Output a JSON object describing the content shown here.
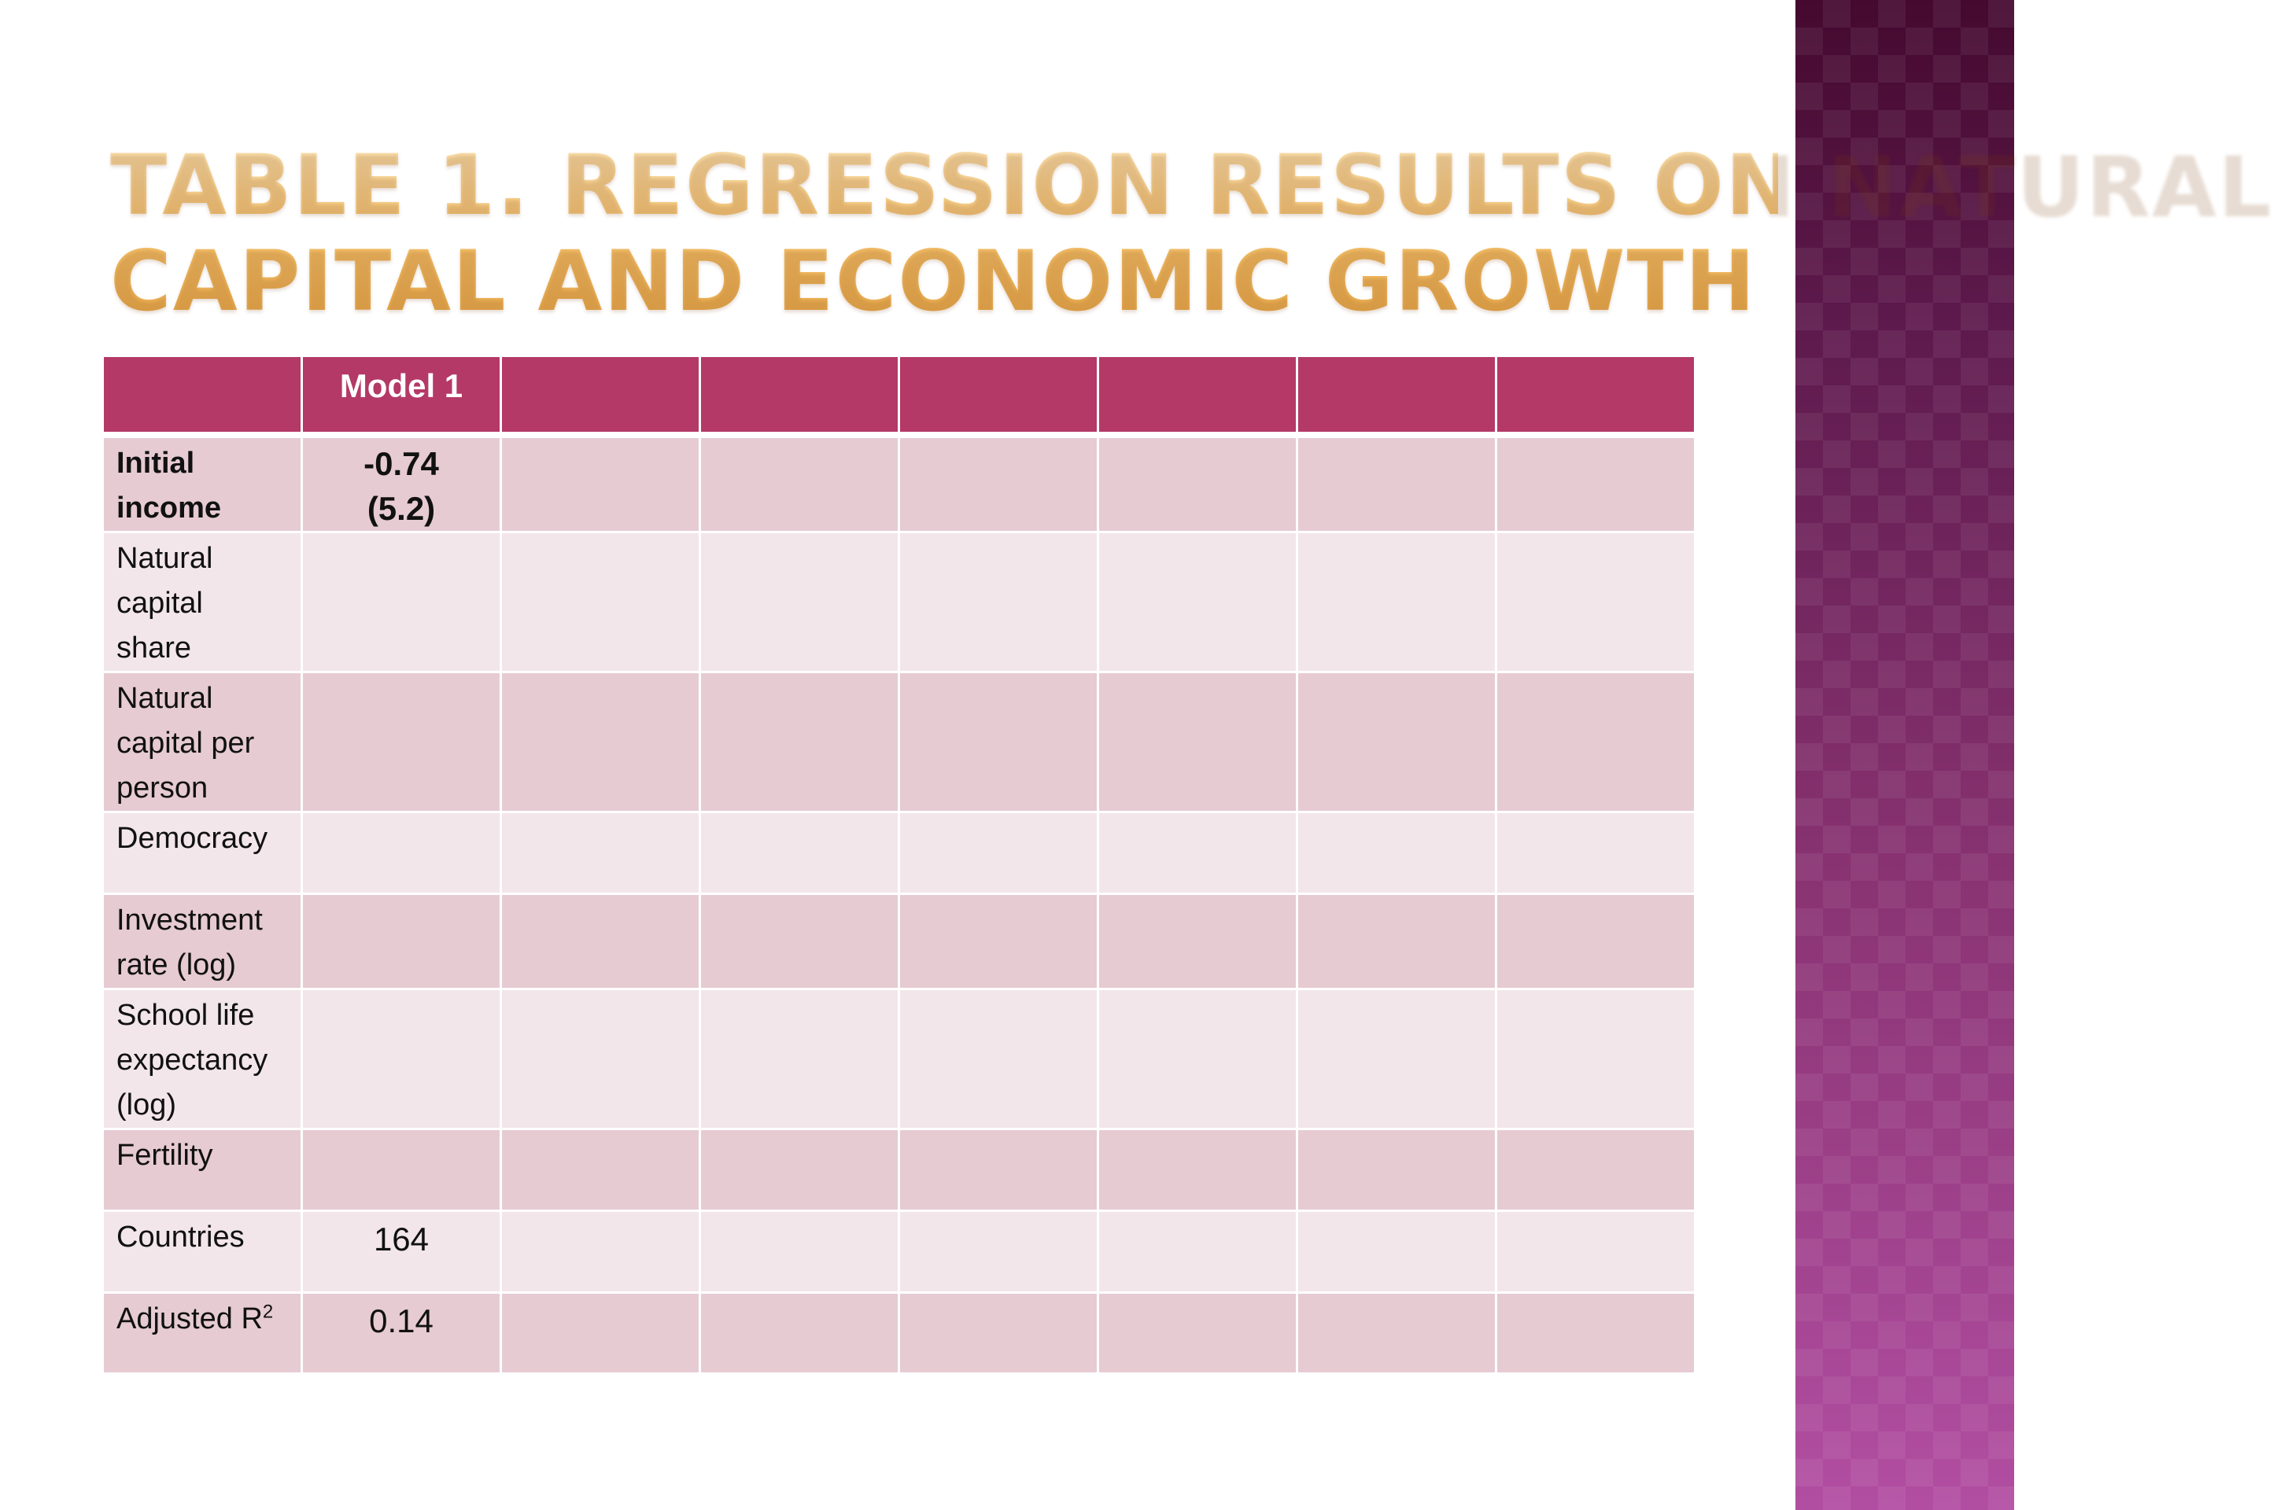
{
  "slide": {
    "title_line1": "Table 1. Regression results on natural",
    "title_line2": "capital and economic growth",
    "accent_color": "#b43966",
    "band_color_top": "#45092f",
    "band_color_bottom": "#b24ea2",
    "title_color": "#f4c06a"
  },
  "table": {
    "columns": [
      "",
      "Model 1",
      "",
      "",
      "",
      "",
      "",
      ""
    ],
    "rows": [
      {
        "label": "Initial income",
        "label_lines": [
          "Initial",
          "income"
        ],
        "values": [
          "-0.74\n(5.2)",
          "",
          "",
          "",
          "",
          "",
          ""
        ],
        "model1_line1": "-0.74",
        "model1_line2": "(5.2)"
      },
      {
        "label": "Natural capital share",
        "label_lines": [
          "Natural",
          "capital",
          "share"
        ],
        "values": [
          "",
          "",
          "",
          "",
          "",
          "",
          ""
        ]
      },
      {
        "label": "Natural capital per person",
        "label_lines": [
          "Natural",
          "capital per",
          "person"
        ],
        "values": [
          "",
          "",
          "",
          "",
          "",
          "",
          ""
        ]
      },
      {
        "label": "Democracy",
        "label_lines": [
          "Democracy"
        ],
        "values": [
          "",
          "",
          "",
          "",
          "",
          "",
          ""
        ]
      },
      {
        "label": "Investment rate (log)",
        "label_lines": [
          "Investment",
          "rate (log)"
        ],
        "values": [
          "",
          "",
          "",
          "",
          "",
          "",
          ""
        ]
      },
      {
        "label": "School life expectancy (log)",
        "label_lines": [
          "School life",
          "expectancy",
          "(log)"
        ],
        "values": [
          "",
          "",
          "",
          "",
          "",
          "",
          ""
        ]
      },
      {
        "label": "Fertility",
        "label_lines": [
          "Fertility"
        ],
        "values": [
          "",
          "",
          "",
          "",
          "",
          "",
          ""
        ]
      },
      {
        "label": "Countries",
        "label_lines": [
          "Countries"
        ],
        "values": [
          "164",
          "",
          "",
          "",
          "",
          "",
          ""
        ]
      },
      {
        "label": "Adjusted R²",
        "label_main": "Adjusted R",
        "label_sup": "2",
        "values": [
          "0.14",
          "",
          "",
          "",
          "",
          "",
          ""
        ]
      }
    ]
  }
}
